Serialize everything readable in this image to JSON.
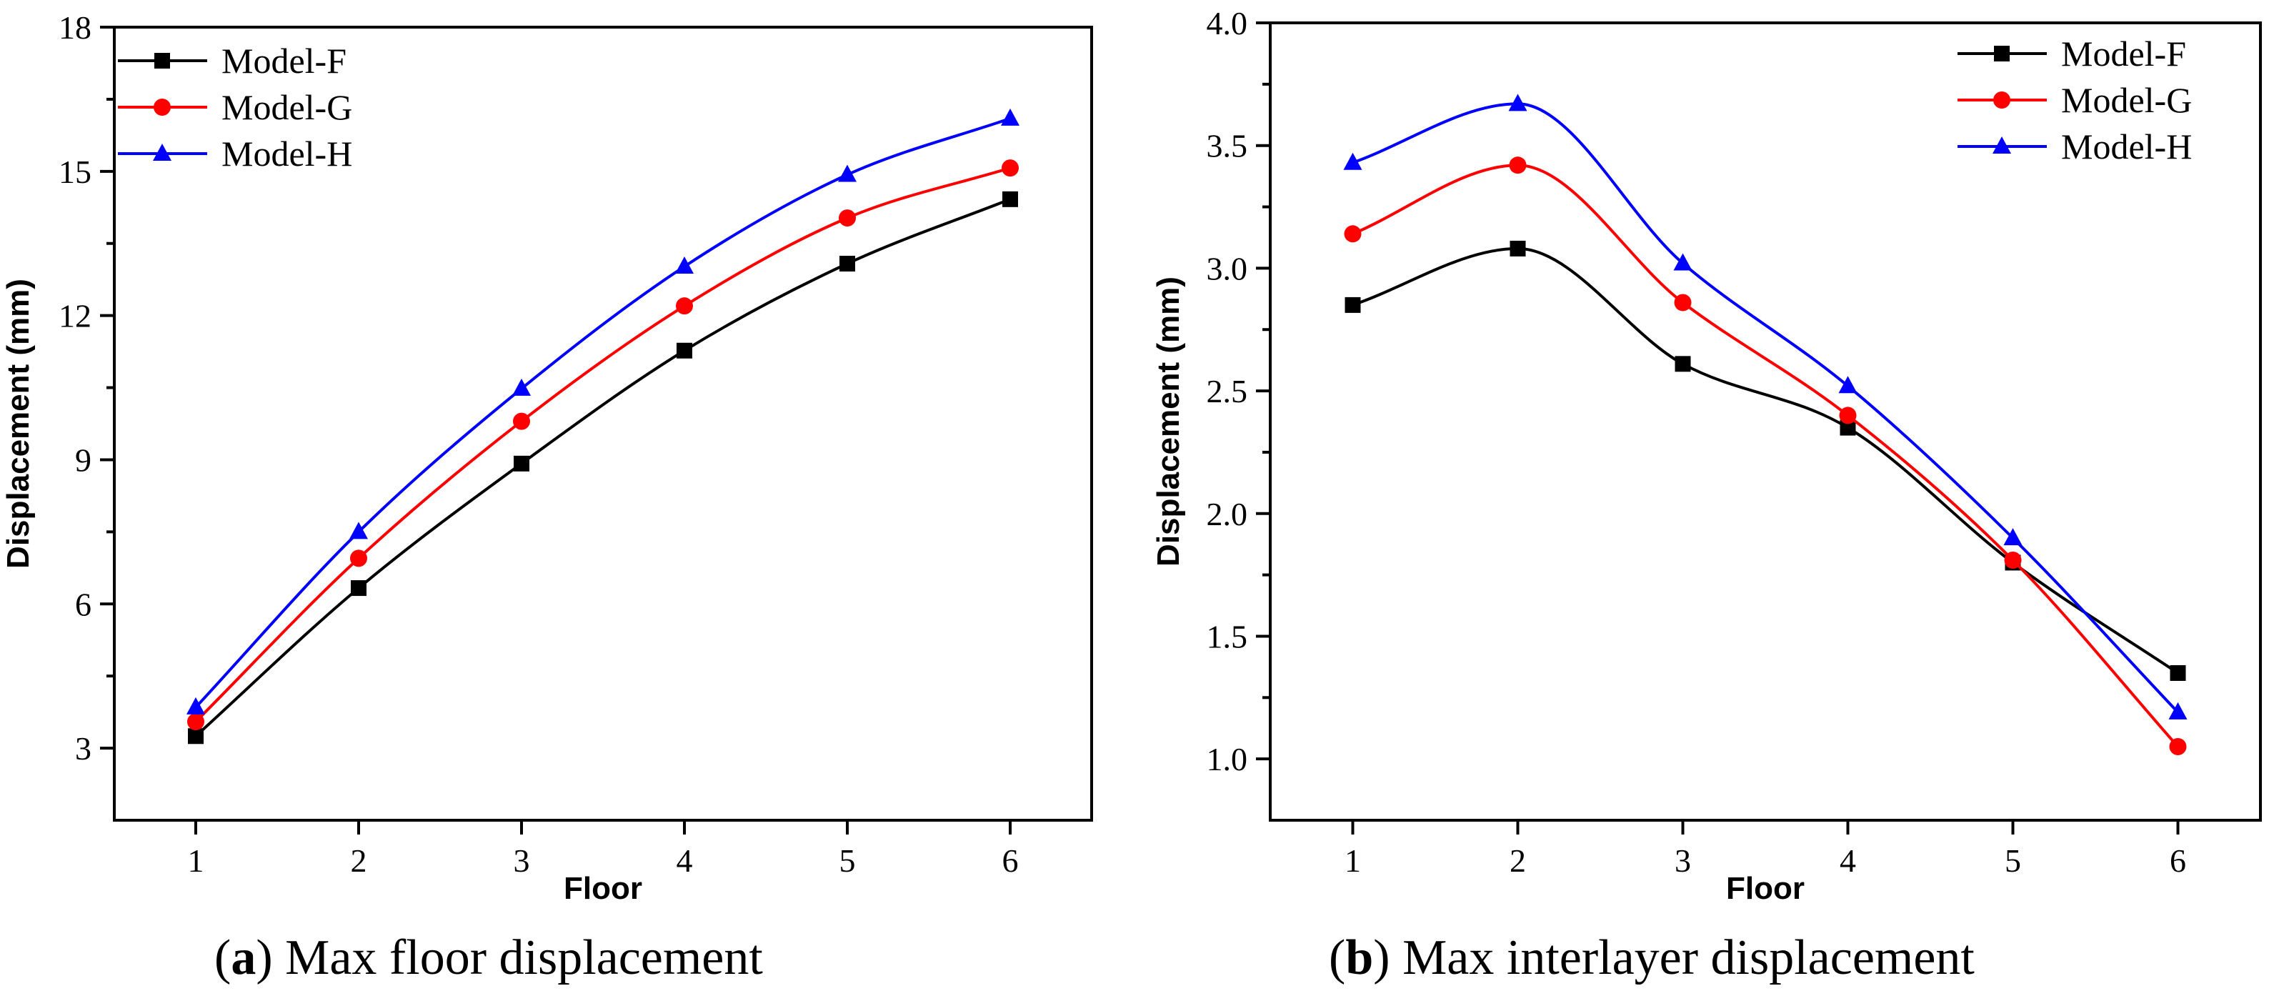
{
  "chart_data": [
    {
      "type": "line",
      "caption_letter": "a",
      "caption_text": " Max floor displacement",
      "xlabel": "Floor",
      "ylabel": "Displacement (mm)",
      "xlim": [
        0.5,
        6.5
      ],
      "ylim": [
        1.5,
        18
      ],
      "x": [
        1,
        2,
        3,
        4,
        5,
        6
      ],
      "xticks": [
        "1",
        "2",
        "3",
        "4",
        "5",
        "6"
      ],
      "yticks": [
        3,
        6,
        9,
        12,
        15,
        18
      ],
      "ytick_labels": [
        "3",
        "6",
        "9",
        "12",
        "15",
        "18"
      ],
      "legend_position": "top-left",
      "series": [
        {
          "name": "Model-F",
          "color": "#000000",
          "marker": "square",
          "values": [
            3.25,
            6.33,
            8.92,
            11.27,
            13.08,
            14.42
          ]
        },
        {
          "name": "Model-G",
          "color": "#ff0000",
          "marker": "circle",
          "values": [
            3.55,
            6.95,
            9.8,
            12.2,
            14.03,
            15.07
          ]
        },
        {
          "name": "Model-H",
          "color": "#0000ff",
          "marker": "triangle",
          "values": [
            3.85,
            7.5,
            10.48,
            13.02,
            14.93,
            16.1
          ]
        }
      ]
    },
    {
      "type": "line",
      "caption_letter": "b",
      "caption_text": " Max interlayer displacement",
      "xlabel": "Floor",
      "ylabel": "Displacement (mm)",
      "xlim": [
        0.5,
        6.5
      ],
      "ylim": [
        0.75,
        4.0
      ],
      "x": [
        1,
        2,
        3,
        4,
        5,
        6
      ],
      "xticks": [
        "1",
        "2",
        "3",
        "4",
        "5",
        "6"
      ],
      "yticks": [
        1.0,
        1.5,
        2.0,
        2.5,
        3.0,
        3.5,
        4.0
      ],
      "ytick_labels": [
        "1.0",
        "1.5",
        "2.0",
        "2.5",
        "3.0",
        "3.5",
        "4.0"
      ],
      "legend_position": "top-right",
      "series": [
        {
          "name": "Model-F",
          "color": "#000000",
          "marker": "square",
          "values": [
            2.85,
            3.08,
            2.61,
            2.35,
            1.8,
            1.35
          ]
        },
        {
          "name": "Model-G",
          "color": "#ff0000",
          "marker": "circle",
          "values": [
            3.14,
            3.42,
            2.86,
            2.4,
            1.81,
            1.05
          ]
        },
        {
          "name": "Model-H",
          "color": "#0000ff",
          "marker": "triangle",
          "values": [
            3.43,
            3.67,
            3.02,
            2.52,
            1.9,
            1.19
          ]
        }
      ]
    }
  ]
}
